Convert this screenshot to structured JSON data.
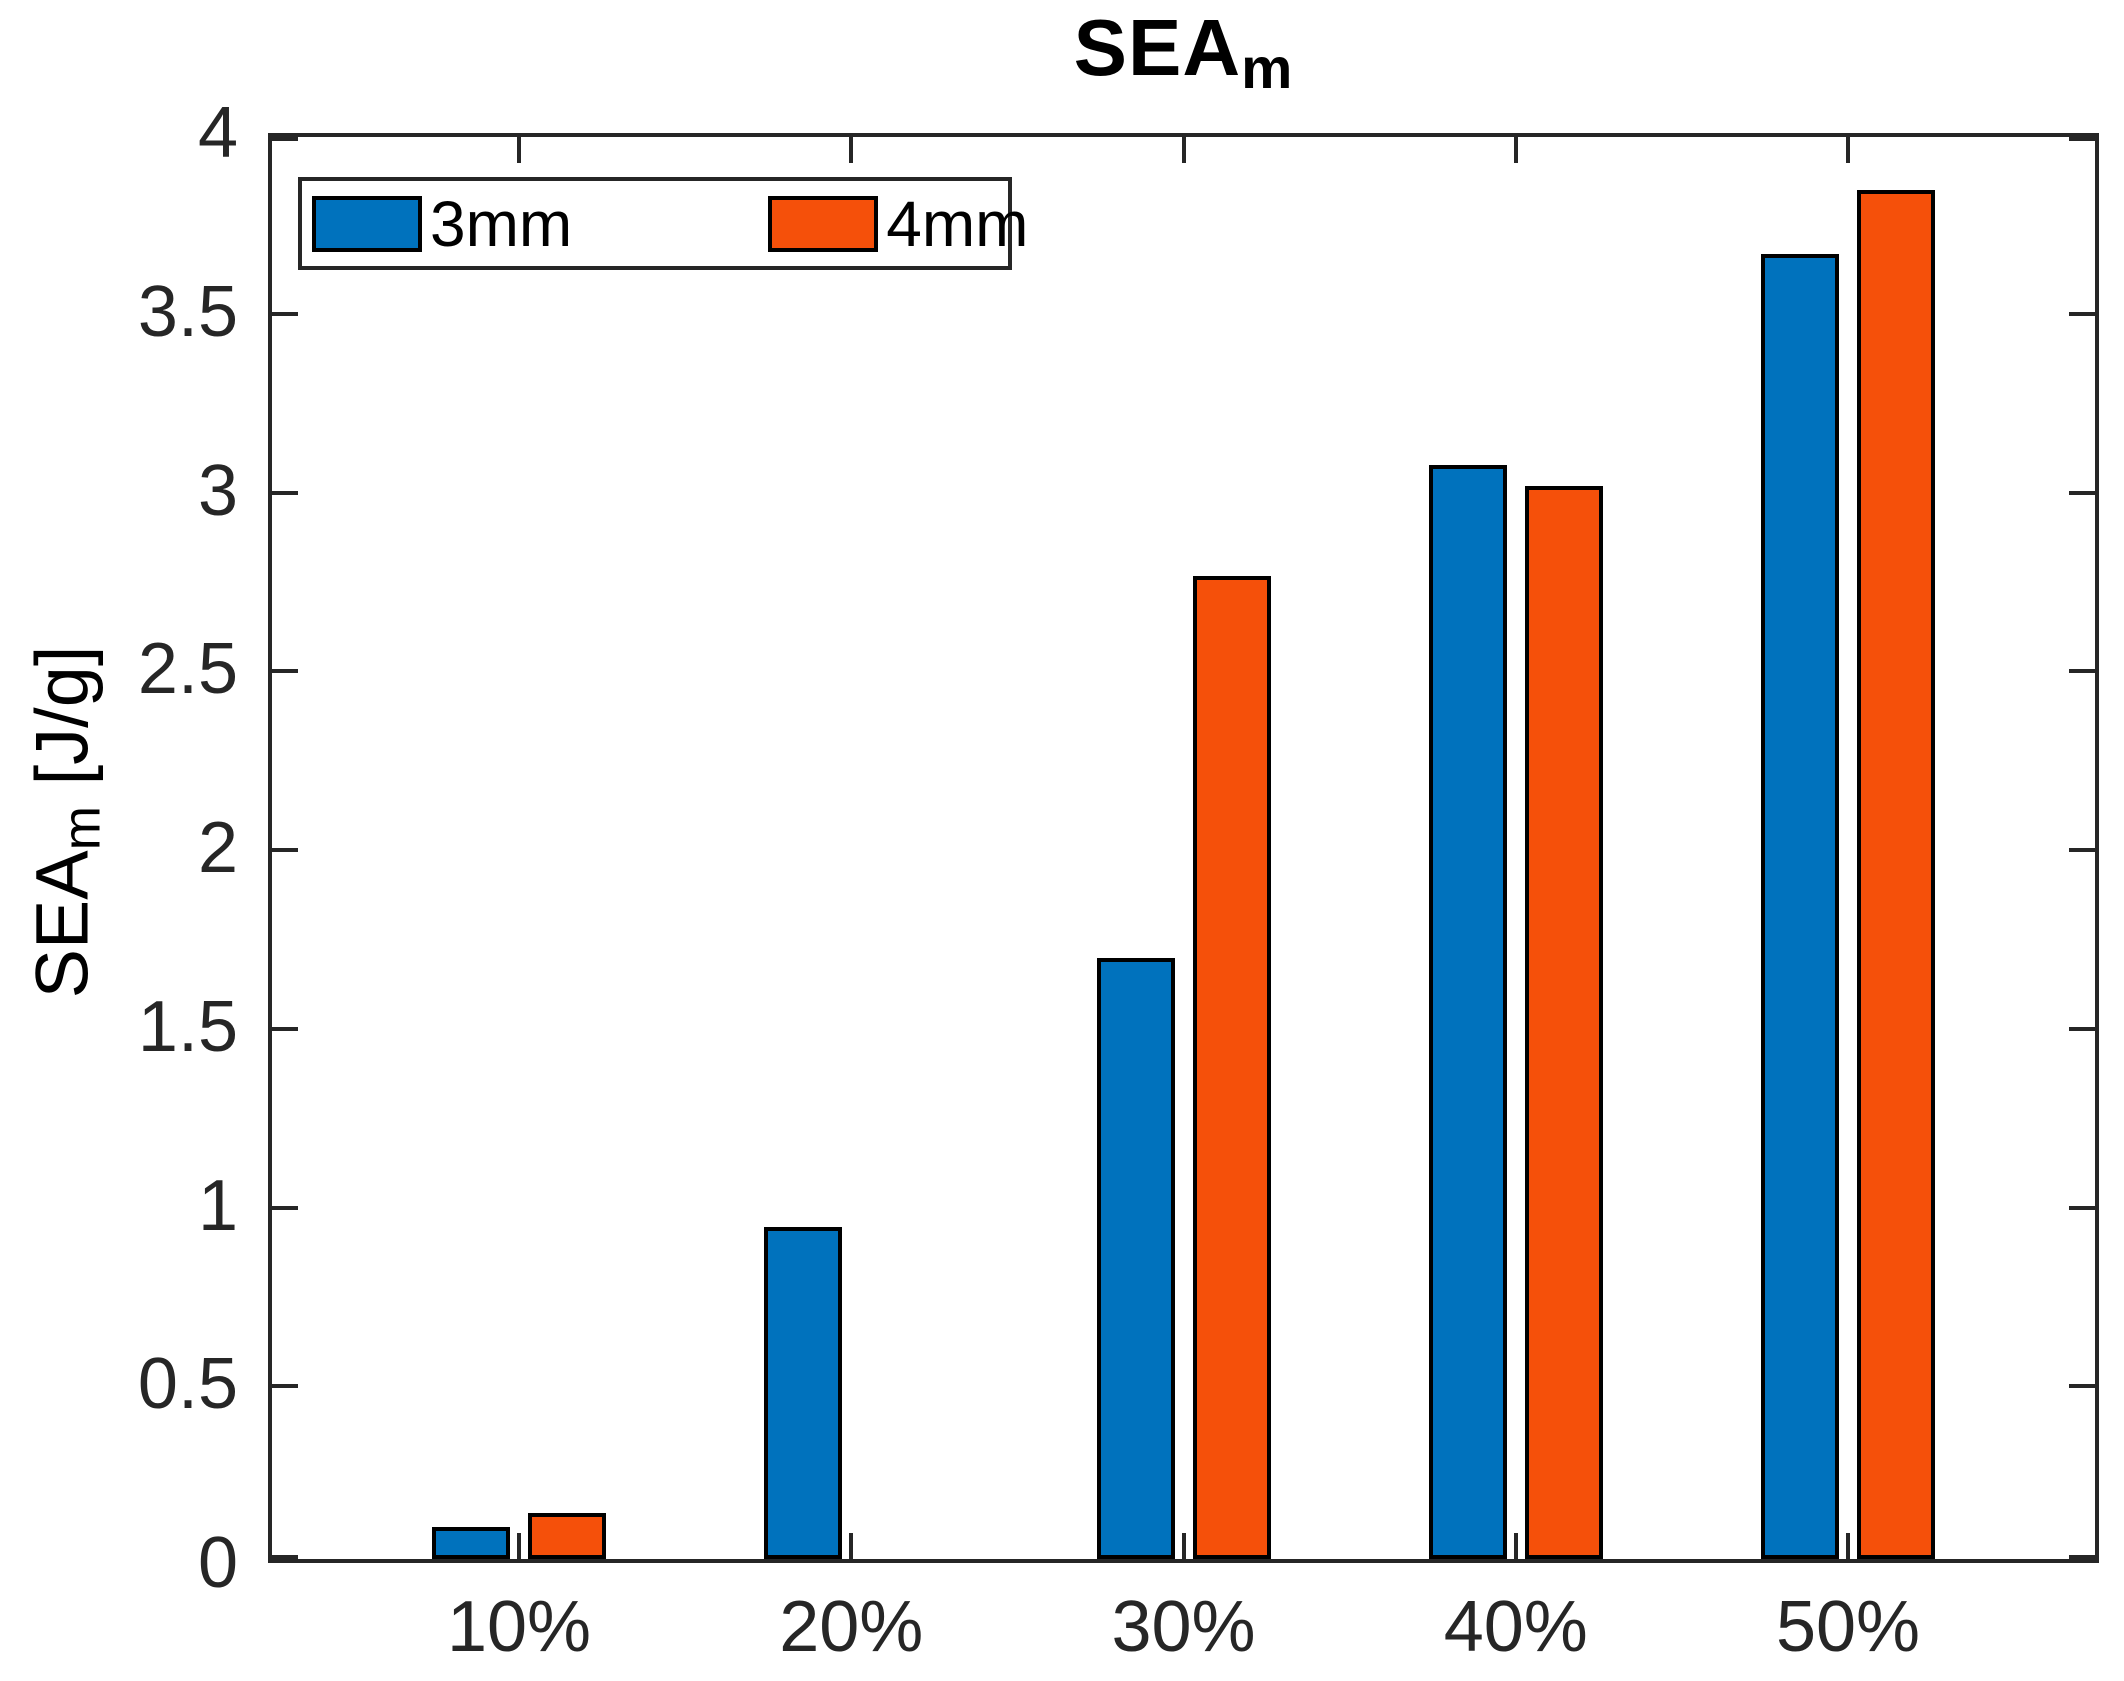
{
  "chart_data": {
    "type": "bar",
    "title_main": "SEA",
    "title_sub": "m",
    "ylabel_main": "SEA",
    "ylabel_sub": "m",
    "ylabel_unit": " [J/g]",
    "categories": [
      "10%",
      "20%",
      "30%",
      "40%",
      "50%"
    ],
    "series": [
      {
        "name": "3mm",
        "color": "#0072BD",
        "values": [
          0.09,
          0.93,
          1.68,
          3.06,
          3.65
        ]
      },
      {
        "name": "4mm",
        "color": "#F5500A",
        "values": [
          0.13,
          0,
          2.75,
          3.0,
          3.83
        ]
      }
    ],
    "ylim": [
      0,
      4
    ],
    "yticks": [
      0,
      0.5,
      1,
      1.5,
      2,
      2.5,
      3,
      3.5,
      4
    ],
    "ytick_labels": [
      "0",
      "0.5",
      "1",
      "1.5",
      "2",
      "2.5",
      "3",
      "3.5",
      "4"
    ],
    "grid": "off",
    "legend_position": "top-left-inside",
    "bar_edge_color": "#000000",
    "axis_color": "#262626"
  }
}
